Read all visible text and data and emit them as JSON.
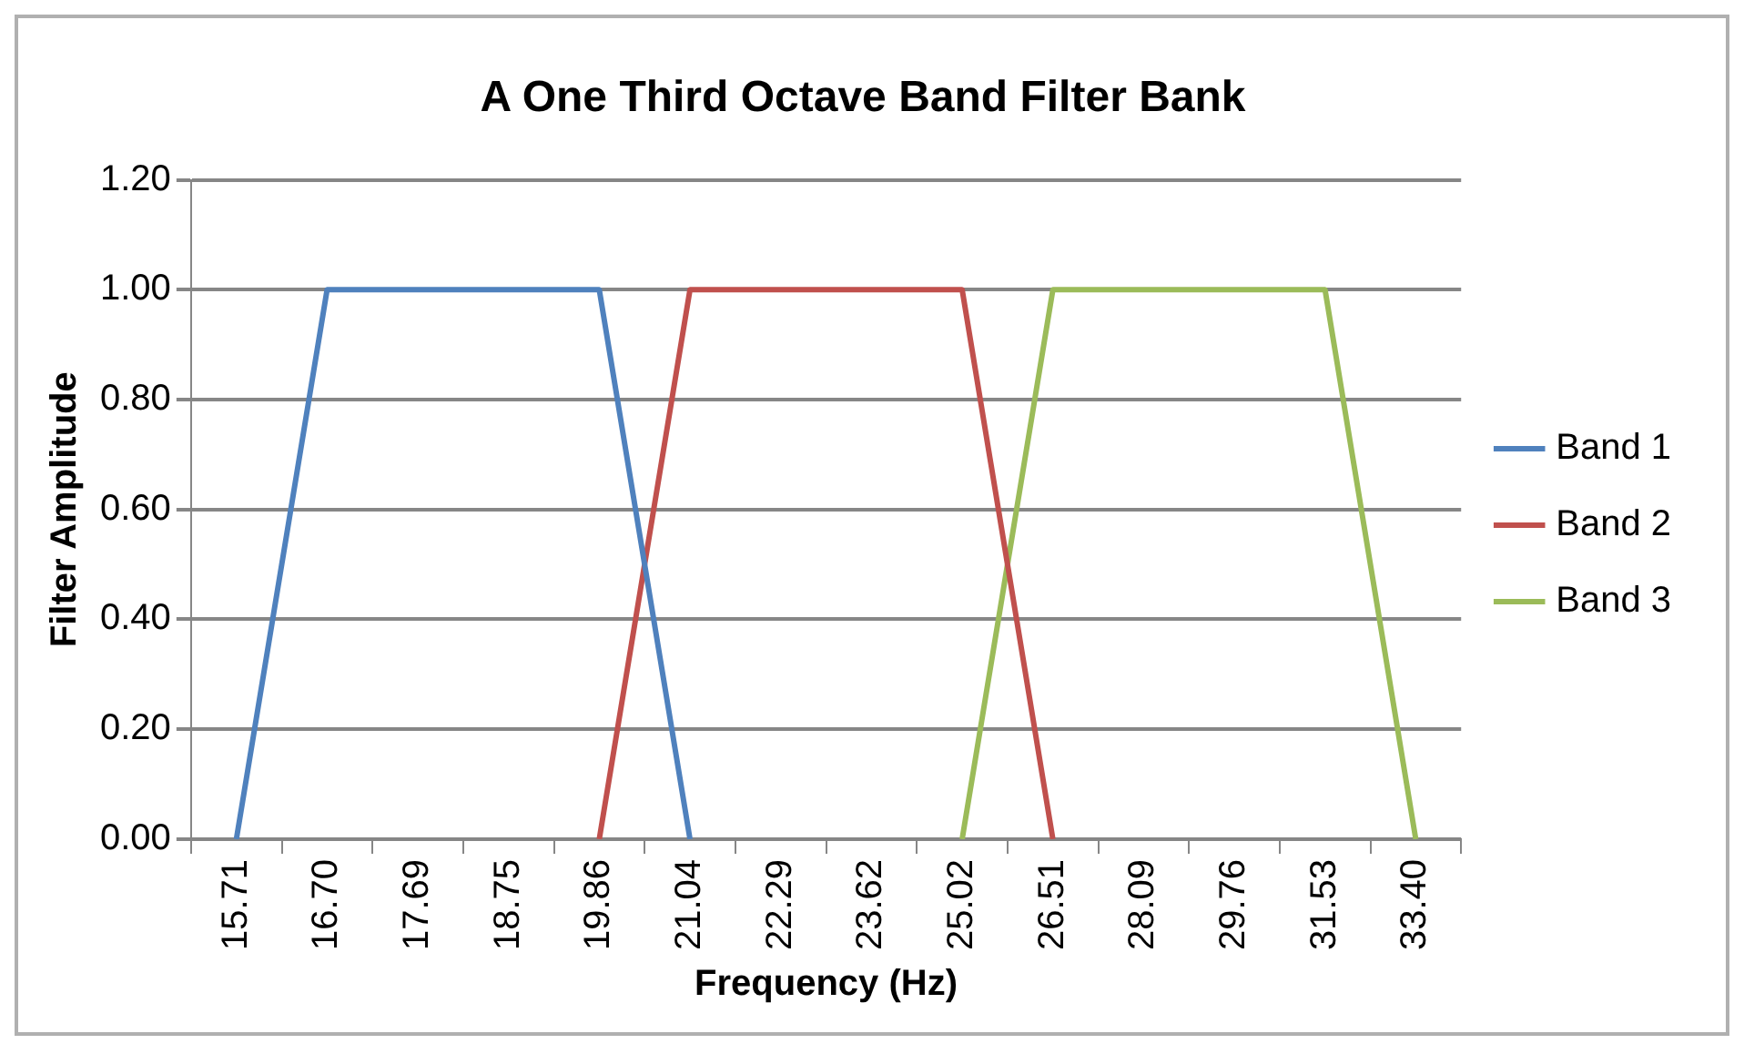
{
  "chart_data": {
    "type": "line",
    "title": "A One Third Octave Band Filter Bank",
    "xlabel": "Frequency (Hz)",
    "ylabel": "Filter Amplitude",
    "categories": [
      "15.71",
      "16.70",
      "17.69",
      "18.75",
      "19.86",
      "21.04",
      "22.29",
      "23.62",
      "25.02",
      "26.51",
      "28.09",
      "29.76",
      "31.53",
      "33.40"
    ],
    "series": [
      {
        "name": "Band 1",
        "color": "#4f81bd",
        "values": [
          0,
          1,
          1,
          1,
          1,
          0,
          null,
          null,
          null,
          null,
          null,
          null,
          null,
          null
        ]
      },
      {
        "name": "Band 2",
        "color": "#c0504d",
        "values": [
          null,
          null,
          null,
          null,
          0,
          1,
          1,
          1,
          1,
          0,
          null,
          null,
          null,
          null
        ]
      },
      {
        "name": "Band 3",
        "color": "#9bbb59",
        "values": [
          null,
          null,
          null,
          null,
          null,
          null,
          null,
          null,
          0,
          1,
          1,
          1,
          1,
          0
        ]
      }
    ],
    "ylim": [
      0,
      1.2
    ],
    "yticks": [
      {
        "value": 0,
        "label": "0.00"
      },
      {
        "value": 0.2,
        "label": "0.20"
      },
      {
        "value": 0.4,
        "label": "0.40"
      },
      {
        "value": 0.6,
        "label": "0.60"
      },
      {
        "value": 0.8,
        "label": "0.80"
      },
      {
        "value": 1,
        "label": "1.00"
      },
      {
        "value": 1.2,
        "label": "1.20"
      }
    ],
    "grid": "y",
    "legend": "right",
    "marker": "none",
    "line_style": "solid"
  }
}
